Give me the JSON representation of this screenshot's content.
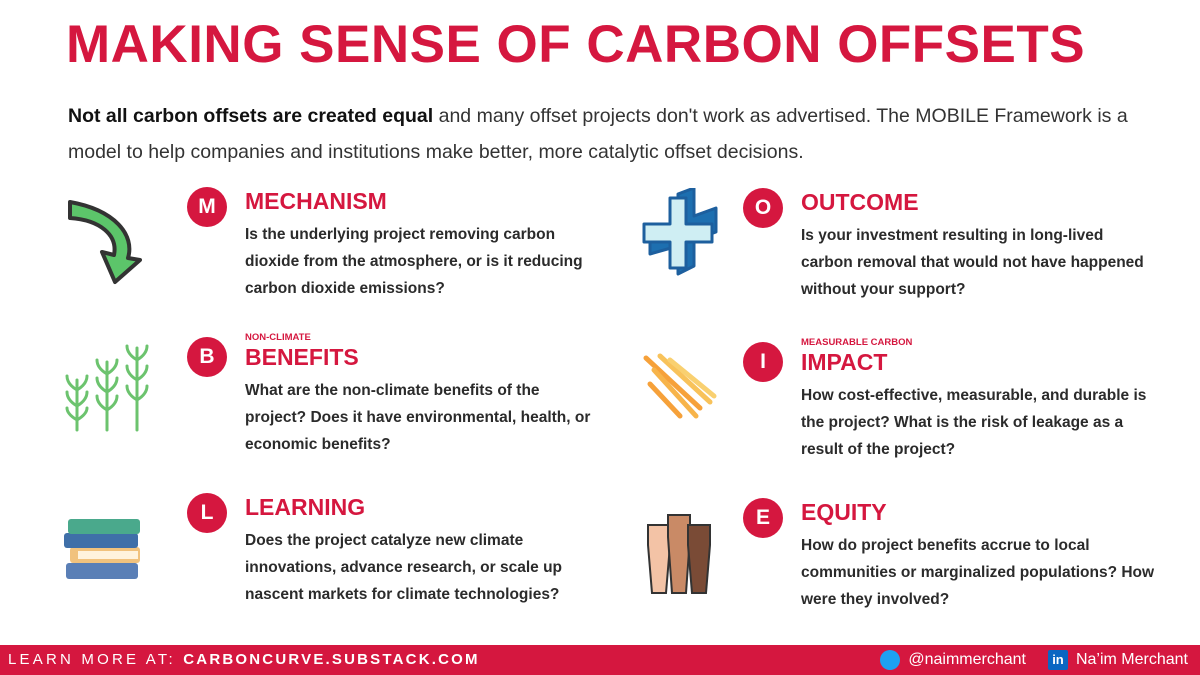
{
  "title": "MAKING SENSE OF CARBON OFFSETS",
  "intro": {
    "bold": "Not all carbon offsets are created equal",
    "text": " and many offset projects don't work as advertised. The MOBILE Framework is a model to help companies and institutions make better, more catalytic offset decisions."
  },
  "items": [
    {
      "letter": "M",
      "heading": "MECHANISM",
      "body": "Is the underlying project removing carbon dioxide from the atmosphere, or is it reducing carbon dioxide emissions?"
    },
    {
      "letter": "O",
      "heading": "OUTCOME",
      "body": "Is your investment resulting in long-lived carbon removal that would not have happened without your support?"
    },
    {
      "letter": "B",
      "kicker": "NON-CLIMATE",
      "heading": "BENEFITS",
      "body": "What are the non-climate benefits of the project? Does it have environmental, health, or economic benefits?"
    },
    {
      "letter": "I",
      "kicker": "MEASURABLE CARBON",
      "heading": "IMPACT",
      "body": "How cost-effective, measurable, and durable is the project? What is the risk of leakage as a result of the project?"
    },
    {
      "letter": "L",
      "heading": "LEARNING",
      "body": "Does the project catalyze new climate innovations, advance research, or scale up nascent markets for climate technologies?"
    },
    {
      "letter": "E",
      "heading": "EQUITY",
      "body": "How do project benefits accrue to local communities or marginalized populations? How were they involved?"
    }
  ],
  "footer": {
    "label": "LEARN MORE AT:",
    "url": "CARBONCURVE.SUBSTACK.COM",
    "twitter": "@naimmerchant",
    "linkedin_badge": "in",
    "linkedin": "Na’im Merchant"
  }
}
